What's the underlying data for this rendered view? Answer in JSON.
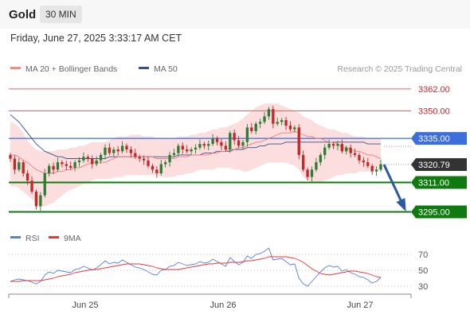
{
  "header": {
    "title": "Gold",
    "interval": "30 MIN"
  },
  "timestamp": "Friday, June 27, 2025 3:33:17 AM CET",
  "legend_main": [
    {
      "label": "MA 20 + Bollinger Bands",
      "color": "#f28b82"
    },
    {
      "label": "MA 50",
      "color": "#3b4f8a"
    }
  ],
  "legend_rsi": [
    {
      "label": "RSI",
      "color": "#5b7fd6"
    },
    {
      "label": "9MA",
      "color": "#e53935"
    }
  ],
  "credit": "Research © 2025 Trading Central",
  "colors": {
    "up": "#2e7d32",
    "down": "#c62828",
    "support": "#0f7a0f",
    "pivot": "#3d6fdc",
    "resistance": "#e06666",
    "band": "#fcdede",
    "ma50": "#3b4f8a",
    "ma20": "#ef7b7b",
    "last_price": "#333333",
    "arrow": "#2c5aa0"
  },
  "chart_data": [
    {
      "type": "candlestick",
      "y_range": [
        3290,
        3368
      ],
      "x_labels": [
        "Jun 25",
        "Jun 26",
        "Jun 27"
      ],
      "price_levels": [
        {
          "label": "3362.00",
          "value": 3362.0,
          "kind": "resistance"
        },
        {
          "label": "3350.00",
          "value": 3350.0,
          "kind": "resistance"
        },
        {
          "label": "3335.00",
          "value": 3335.0,
          "kind": "pivot"
        },
        {
          "label": "3320.79",
          "value": 3320.79,
          "kind": "last_price"
        },
        {
          "label": "3311.00",
          "value": 3311.0,
          "kind": "support"
        },
        {
          "label": "3295.00",
          "value": 3295.0,
          "kind": "support"
        }
      ],
      "series": {
        "close": [
          3324,
          3318,
          3322,
          3316,
          3312,
          3306,
          3298,
          3304,
          3316,
          3320,
          3318,
          3322,
          3321,
          3320,
          3319,
          3322,
          3323,
          3325,
          3324,
          3321,
          3323,
          3326,
          3330,
          3327,
          3329,
          3328,
          3331,
          3329,
          3327,
          3325,
          3324,
          3323,
          3320,
          3318,
          3316,
          3321,
          3322,
          3326,
          3327,
          3331,
          3329,
          3328,
          3329,
          3330,
          3332,
          3331,
          3332,
          3335,
          3333,
          3331,
          3329,
          3338,
          3334,
          3331,
          3333,
          3341,
          3339,
          3343,
          3344,
          3347,
          3351,
          3343,
          3344,
          3345,
          3342,
          3340,
          3341,
          3326,
          3318,
          3314,
          3318,
          3322,
          3326,
          3330,
          3332,
          3331,
          3332,
          3328,
          3330,
          3327,
          3326,
          3323,
          3322,
          3320,
          3317,
          3318,
          3321
        ],
        "ma20": [
          3326,
          3326,
          3325,
          3323,
          3322,
          3320,
          3318,
          3317,
          3316,
          3316,
          3316,
          3317,
          3317,
          3318,
          3318,
          3319,
          3319,
          3320,
          3321,
          3322,
          3322,
          3322,
          3322,
          3323,
          3324,
          3325,
          3325,
          3325,
          3325,
          3325,
          3325,
          3325,
          3325,
          3325,
          3324,
          3324,
          3324,
          3324,
          3324,
          3325,
          3325,
          3325,
          3326,
          3326,
          3326,
          3326,
          3326,
          3327,
          3327,
          3328,
          3328,
          3329,
          3329,
          3330,
          3330,
          3331,
          3332,
          3333,
          3333,
          3334,
          3335,
          3336,
          3337,
          3338,
          3338,
          3338,
          3339,
          3338,
          3337,
          3336,
          3336,
          3335,
          3335,
          3334,
          3333,
          3333,
          3332,
          3330,
          3330,
          3329,
          3328,
          3328,
          3327,
          3326,
          3326,
          3325,
          3324
        ],
        "upper_band": [
          3344,
          3343,
          3341,
          3338,
          3334,
          3331,
          3329,
          3328,
          3328,
          3328,
          3328,
          3329,
          3329,
          3329,
          3330,
          3330,
          3331,
          3331,
          3332,
          3333,
          3333,
          3333,
          3333,
          3334,
          3335,
          3336,
          3336,
          3336,
          3337,
          3337,
          3337,
          3336,
          3336,
          3336,
          3335,
          3335,
          3335,
          3335,
          3335,
          3336,
          3336,
          3336,
          3337,
          3337,
          3338,
          3338,
          3339,
          3340,
          3340,
          3341,
          3341,
          3342,
          3343,
          3344,
          3346,
          3348,
          3350,
          3352,
          3353,
          3354,
          3354,
          3354,
          3354,
          3353,
          3352,
          3351,
          3350,
          3349,
          3347,
          3346,
          3345,
          3343,
          3342,
          3341,
          3340,
          3340,
          3339,
          3338,
          3338,
          3337,
          3336,
          3336,
          3336,
          3335,
          3335,
          3335,
          3335
        ],
        "lower_band": [
          3309,
          3309,
          3308,
          3306,
          3304,
          3302,
          3299,
          3298,
          3298,
          3299,
          3300,
          3302,
          3304,
          3306,
          3307,
          3308,
          3309,
          3310,
          3311,
          3312,
          3313,
          3313,
          3313,
          3313,
          3314,
          3314,
          3314,
          3315,
          3315,
          3315,
          3315,
          3315,
          3315,
          3315,
          3315,
          3314,
          3314,
          3314,
          3314,
          3315,
          3315,
          3316,
          3316,
          3317,
          3318,
          3318,
          3318,
          3318,
          3319,
          3319,
          3319,
          3319,
          3318,
          3318,
          3317,
          3317,
          3318,
          3319,
          3320,
          3321,
          3322,
          3322,
          3322,
          3322,
          3322,
          3321,
          3320,
          3318,
          3314,
          3312,
          3311,
          3311,
          3311,
          3312,
          3313,
          3314,
          3315,
          3315,
          3316,
          3316,
          3316,
          3317,
          3317,
          3317,
          3318,
          3318,
          3318
        ],
        "ma50": [
          3348,
          3346,
          3344,
          3341,
          3338,
          3335,
          3332,
          3330,
          3328,
          3327,
          3326,
          3325,
          3325,
          3324,
          3324,
          3324,
          3324,
          3324,
          3324,
          3324,
          3324,
          3324,
          3324,
          3325,
          3325,
          3325,
          3325,
          3325,
          3325,
          3325,
          3325,
          3325,
          3325,
          3325,
          3325,
          3325,
          3325,
          3325,
          3325,
          3326,
          3326,
          3326,
          3326,
          3326,
          3326,
          3327,
          3327,
          3327,
          3328,
          3328,
          3328,
          3328,
          3329,
          3329,
          3329,
          3330,
          3330,
          3330,
          3331,
          3331,
          3332,
          3332,
          3332,
          3332,
          3333,
          3333,
          3333,
          3333,
          3333,
          3333,
          3333,
          3333,
          3333,
          3333,
          3333,
          3333,
          3333,
          3333,
          3333,
          3333,
          3333,
          3333,
          3333,
          3332,
          3332,
          3332,
          3332
        ]
      },
      "projection": {
        "from": 3320.79,
        "to": 3295.0
      }
    },
    {
      "type": "line",
      "name": "RSI",
      "y_ticks": [
        70,
        50,
        30
      ],
      "y_range": [
        20,
        80
      ],
      "series": [
        {
          "name": "RSI",
          "values": [
            36,
            38,
            39,
            38,
            37,
            35,
            33,
            36,
            44,
            48,
            46,
            50,
            49,
            48,
            47,
            51,
            52,
            55,
            53,
            50,
            53,
            57,
            62,
            58,
            60,
            59,
            63,
            60,
            57,
            54,
            53,
            51,
            48,
            45,
            44,
            50,
            51,
            55,
            56,
            60,
            58,
            56,
            57,
            58,
            61,
            59,
            60,
            64,
            61,
            58,
            55,
            66,
            61,
            57,
            60,
            68,
            65,
            70,
            71,
            74,
            78,
            63,
            64,
            65,
            61,
            57,
            58,
            40,
            33,
            30,
            36,
            42,
            48,
            53,
            56,
            54,
            55,
            49,
            51,
            47,
            45,
            42,
            41,
            38,
            34,
            36,
            41
          ]
        },
        {
          "name": "9MA",
          "values": [
            36,
            36,
            36,
            37,
            37,
            37,
            37,
            37,
            38,
            39,
            40,
            42,
            43,
            44,
            45,
            47,
            48,
            49,
            50,
            51,
            51,
            52,
            53,
            54,
            55,
            56,
            57,
            58,
            58,
            58,
            58,
            57,
            56,
            55,
            53,
            52,
            51,
            51,
            51,
            51,
            52,
            53,
            54,
            55,
            56,
            57,
            58,
            58,
            59,
            59,
            59,
            60,
            60,
            60,
            61,
            62,
            62,
            63,
            64,
            65,
            67,
            67,
            67,
            67,
            67,
            66,
            65,
            63,
            60,
            56,
            52,
            49,
            46,
            45,
            44,
            45,
            46,
            47,
            48,
            49,
            49,
            48,
            47,
            46,
            44,
            42,
            41
          ]
        }
      ]
    }
  ]
}
